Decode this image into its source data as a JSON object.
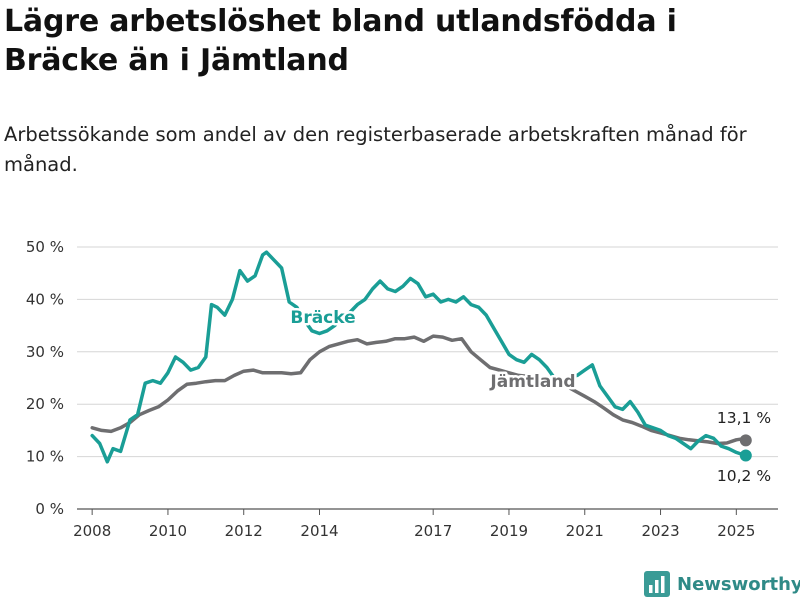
{
  "title": "Lägre arbetslöshet bland utlandsfödda i Bräcke än i Jämtland",
  "subtitle": "Arbetssökande som andel av den registerbaserade arbetskraften månad för månad.",
  "brand": {
    "name": "Newsworthy",
    "icon": "bar-chart-logo-icon",
    "color": "#3a9b96"
  },
  "chart_data": {
    "type": "line",
    "x_unit": "year (decimal)",
    "y_unit": "%",
    "xlim": [
      2007.6,
      2026.1
    ],
    "ylim": [
      0,
      50
    ],
    "grid": true,
    "x_ticks": [
      "2008",
      "2010",
      "2012",
      "2014",
      "2017",
      "2019",
      "2021",
      "2023",
      "2025"
    ],
    "y_ticks": [
      "0 %",
      "10 %",
      "20 %",
      "30 %",
      "40 %",
      "50 %"
    ],
    "series": [
      {
        "name": "Jämtland",
        "color": "#6e6e70",
        "end_label": "13,1 %",
        "points": [
          [
            2008.0,
            15.5
          ],
          [
            2008.25,
            15.0
          ],
          [
            2008.5,
            14.8
          ],
          [
            2008.75,
            15.5
          ],
          [
            2009.0,
            16.5
          ],
          [
            2009.25,
            18.0
          ],
          [
            2009.5,
            18.8
          ],
          [
            2009.75,
            19.5
          ],
          [
            2010.0,
            20.8
          ],
          [
            2010.25,
            22.5
          ],
          [
            2010.5,
            23.8
          ],
          [
            2010.75,
            24.0
          ],
          [
            2011.0,
            24.3
          ],
          [
            2011.25,
            24.5
          ],
          [
            2011.5,
            24.5
          ],
          [
            2011.75,
            25.5
          ],
          [
            2012.0,
            26.3
          ],
          [
            2012.25,
            26.5
          ],
          [
            2012.5,
            26.0
          ],
          [
            2012.75,
            26.0
          ],
          [
            2013.0,
            26.0
          ],
          [
            2013.25,
            25.8
          ],
          [
            2013.5,
            26.0
          ],
          [
            2013.75,
            28.5
          ],
          [
            2014.0,
            30.0
          ],
          [
            2014.25,
            31.0
          ],
          [
            2014.5,
            31.5
          ],
          [
            2014.75,
            32.0
          ],
          [
            2015.0,
            32.3
          ],
          [
            2015.25,
            31.5
          ],
          [
            2015.5,
            31.8
          ],
          [
            2015.75,
            32.0
          ],
          [
            2016.0,
            32.5
          ],
          [
            2016.25,
            32.5
          ],
          [
            2016.5,
            32.8
          ],
          [
            2016.75,
            32.0
          ],
          [
            2017.0,
            33.0
          ],
          [
            2017.25,
            32.8
          ],
          [
            2017.5,
            32.2
          ],
          [
            2017.75,
            32.5
          ],
          [
            2018.0,
            30.0
          ],
          [
            2018.25,
            28.5
          ],
          [
            2018.5,
            27.0
          ],
          [
            2018.75,
            26.5
          ],
          [
            2019.0,
            26.0
          ],
          [
            2019.25,
            25.5
          ],
          [
            2019.5,
            25.3
          ],
          [
            2019.75,
            25.0
          ],
          [
            2020.0,
            24.5
          ],
          [
            2020.25,
            24.0
          ],
          [
            2020.5,
            23.5
          ],
          [
            2020.75,
            22.5
          ],
          [
            2021.0,
            21.5
          ],
          [
            2021.25,
            20.5
          ],
          [
            2021.5,
            19.3
          ],
          [
            2021.75,
            18.0
          ],
          [
            2022.0,
            17.0
          ],
          [
            2022.25,
            16.5
          ],
          [
            2022.5,
            15.8
          ],
          [
            2022.75,
            15.0
          ],
          [
            2023.0,
            14.5
          ],
          [
            2023.25,
            14.0
          ],
          [
            2023.5,
            13.5
          ],
          [
            2023.75,
            13.2
          ],
          [
            2024.0,
            13.0
          ],
          [
            2024.25,
            12.8
          ],
          [
            2024.5,
            12.5
          ],
          [
            2024.75,
            12.6
          ],
          [
            2025.0,
            13.2
          ],
          [
            2025.17,
            13.4
          ],
          [
            2025.25,
            13.1
          ]
        ]
      },
      {
        "name": "Bräcke",
        "color": "#1a9e96",
        "end_label": "10,2 %",
        "points": [
          [
            2008.0,
            14.0
          ],
          [
            2008.2,
            12.5
          ],
          [
            2008.4,
            9.0
          ],
          [
            2008.55,
            11.5
          ],
          [
            2008.75,
            11.0
          ],
          [
            2009.0,
            17.0
          ],
          [
            2009.2,
            18.0
          ],
          [
            2009.4,
            24.0
          ],
          [
            2009.6,
            24.5
          ],
          [
            2009.8,
            24.0
          ],
          [
            2010.0,
            26.0
          ],
          [
            2010.2,
            29.0
          ],
          [
            2010.4,
            28.0
          ],
          [
            2010.6,
            26.5
          ],
          [
            2010.8,
            27.0
          ],
          [
            2011.0,
            29.0
          ],
          [
            2011.15,
            39.0
          ],
          [
            2011.3,
            38.5
          ],
          [
            2011.5,
            37.0
          ],
          [
            2011.7,
            40.0
          ],
          [
            2011.9,
            45.5
          ],
          [
            2012.1,
            43.5
          ],
          [
            2012.3,
            44.5
          ],
          [
            2012.5,
            48.5
          ],
          [
            2012.6,
            49.0
          ],
          [
            2012.8,
            47.5
          ],
          [
            2013.0,
            46.0
          ],
          [
            2013.2,
            39.5
          ],
          [
            2013.4,
            38.5
          ],
          [
            2013.6,
            36.0
          ],
          [
            2013.8,
            34.0
          ],
          [
            2014.0,
            33.5
          ],
          [
            2014.2,
            34.0
          ],
          [
            2014.4,
            35.0
          ],
          [
            2014.6,
            36.5
          ],
          [
            2014.8,
            37.5
          ],
          [
            2015.0,
            39.0
          ],
          [
            2015.2,
            40.0
          ],
          [
            2015.4,
            42.0
          ],
          [
            2015.6,
            43.5
          ],
          [
            2015.8,
            42.0
          ],
          [
            2016.0,
            41.5
          ],
          [
            2016.2,
            42.5
          ],
          [
            2016.4,
            44.0
          ],
          [
            2016.6,
            43.0
          ],
          [
            2016.8,
            40.5
          ],
          [
            2017.0,
            41.0
          ],
          [
            2017.2,
            39.5
          ],
          [
            2017.4,
            40.0
          ],
          [
            2017.6,
            39.5
          ],
          [
            2017.8,
            40.5
          ],
          [
            2018.0,
            39.0
          ],
          [
            2018.2,
            38.5
          ],
          [
            2018.4,
            37.0
          ],
          [
            2018.6,
            34.5
          ],
          [
            2018.8,
            32.0
          ],
          [
            2019.0,
            29.5
          ],
          [
            2019.2,
            28.5
          ],
          [
            2019.4,
            28.0
          ],
          [
            2019.6,
            29.5
          ],
          [
            2019.8,
            28.5
          ],
          [
            2020.0,
            27.0
          ],
          [
            2020.2,
            25.0
          ],
          [
            2020.4,
            24.0
          ],
          [
            2020.6,
            25.0
          ],
          [
            2020.8,
            25.5
          ],
          [
            2021.0,
            26.5
          ],
          [
            2021.2,
            27.5
          ],
          [
            2021.4,
            23.5
          ],
          [
            2021.6,
            21.5
          ],
          [
            2021.8,
            19.5
          ],
          [
            2022.0,
            19.0
          ],
          [
            2022.2,
            20.5
          ],
          [
            2022.4,
            18.5
          ],
          [
            2022.6,
            16.0
          ],
          [
            2022.8,
            15.5
          ],
          [
            2023.0,
            15.0
          ],
          [
            2023.2,
            14.0
          ],
          [
            2023.4,
            13.5
          ],
          [
            2023.6,
            12.5
          ],
          [
            2023.8,
            11.5
          ],
          [
            2024.0,
            13.0
          ],
          [
            2024.2,
            14.0
          ],
          [
            2024.4,
            13.5
          ],
          [
            2024.6,
            12.0
          ],
          [
            2024.8,
            11.5
          ],
          [
            2025.0,
            10.8
          ],
          [
            2025.25,
            10.2
          ]
        ]
      }
    ]
  }
}
